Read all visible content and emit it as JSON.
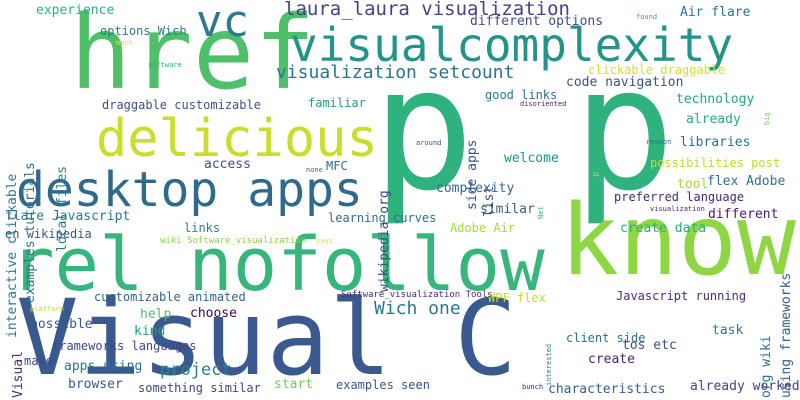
{
  "word_cloud": {
    "words": [
      {
        "text": "Visual C",
        "color": "#3a5a8f"
      },
      {
        "text": "p p",
        "color": "#2fb27d"
      },
      {
        "text": "know",
        "color": "#8fd644"
      },
      {
        "text": "rel nofollow",
        "color": "#36b67b"
      },
      {
        "text": "href",
        "color": "#4fbf6a"
      },
      {
        "text": "desktop apps",
        "color": "#2f6a8c"
      },
      {
        "text": "delicious",
        "color": "#c9dd2a"
      },
      {
        "text": "visualcomplexity",
        "color": "#23948c"
      },
      {
        "text": "vc",
        "color": "#2a7b8e"
      },
      {
        "text": "laura_laura visualization",
        "color": "#414487"
      },
      {
        "text": "visualization setcount",
        "color": "#2c738e"
      },
      {
        "text": "Wich one",
        "color": "#2a788e"
      },
      {
        "text": "project",
        "color": "#25848e"
      },
      {
        "text": "experience",
        "color": "#2db27d"
      },
      {
        "text": "options Wich",
        "color": "#2a7b8e"
      },
      {
        "text": "different options",
        "color": "#3e4c8a"
      },
      {
        "text": "Air flare",
        "color": "#2b758e"
      },
      {
        "text": "code navigation",
        "color": "#3b518b"
      },
      {
        "text": "clickable draggable",
        "color": "#d8e219"
      },
      {
        "text": "good links",
        "color": "#2c738e"
      },
      {
        "text": "technology",
        "color": "#22a884"
      },
      {
        "text": "already",
        "color": "#27ad81"
      },
      {
        "text": "libraries",
        "color": "#2e6f8e"
      },
      {
        "text": "possibilities post",
        "color": "#bddf26"
      },
      {
        "text": "draggable customizable",
        "color": "#3b528b"
      },
      {
        "text": "familiar",
        "color": "#22988d"
      },
      {
        "text": "welcome",
        "color": "#20928c"
      },
      {
        "text": "access",
        "color": "#3d4e8a"
      },
      {
        "text": "MFC",
        "color": "#2e6e8e"
      },
      {
        "text": "complexity",
        "color": "#2f6b8e"
      },
      {
        "text": "tool",
        "color": "#a2da37"
      },
      {
        "text": "flex Adobe",
        "color": "#2e6f8e"
      },
      {
        "text": "preferred language",
        "color": "#482777"
      },
      {
        "text": "similar",
        "color": "#35608d"
      },
      {
        "text": "different",
        "color": "#481a6c"
      },
      {
        "text": "flare Javascript",
        "color": "#2a788e"
      },
      {
        "text": "links",
        "color": "#24868e"
      },
      {
        "text": "learning curves",
        "color": "#2e6e8e"
      },
      {
        "text": "create data",
        "color": "#27ad81"
      },
      {
        "text": "en wikipedia",
        "color": "#3b528b"
      },
      {
        "text": "Adobe Air",
        "color": "#a5db36"
      },
      {
        "text": "customizable animated",
        "color": "#33638d"
      },
      {
        "text": "WPF flex",
        "color": "#c2df23"
      },
      {
        "text": "Javascript running",
        "color": "#472d7b"
      },
      {
        "text": "help",
        "color": "#4cc26c"
      },
      {
        "text": "choose",
        "color": "#440154"
      },
      {
        "text": "possible",
        "color": "#39568c"
      },
      {
        "text": "kind",
        "color": "#1fa187"
      },
      {
        "text": "client side",
        "color": "#2c728e"
      },
      {
        "text": "frameworks languages",
        "color": "#3f4788"
      },
      {
        "text": "make",
        "color": "#3e4a89"
      },
      {
        "text": "apps using",
        "color": "#2c718e"
      },
      {
        "text": "tos etc",
        "color": "#3d4d8a"
      },
      {
        "text": "create",
        "color": "#482071"
      },
      {
        "text": "browser",
        "color": "#38598c"
      },
      {
        "text": "something similar",
        "color": "#3f4889"
      },
      {
        "text": "start",
        "color": "#6ece58"
      },
      {
        "text": "examples seen",
        "color": "#3a548c"
      },
      {
        "text": "characteristics",
        "color": "#355f8d"
      },
      {
        "text": "already worked",
        "color": "#414487"
      },
      {
        "text": "task",
        "color": "#2a788e"
      },
      {
        "text": "Software_visualization Tools",
        "color": "#482878"
      },
      {
        "text": "wiki Software_visualization",
        "color": "#8bd646"
      },
      {
        "text": "interactive clickable",
        "color": "#2a788e"
      },
      {
        "text": "examples tutorials",
        "color": "#2c728e"
      },
      {
        "text": "local files",
        "color": "#2a7b8e"
      },
      {
        "text": "wikipedia org",
        "color": "#3f4788"
      },
      {
        "text": "side apps",
        "color": "#3b518b"
      },
      {
        "text": "list",
        "color": "#3b528b"
      },
      {
        "text": "Visual",
        "color": "#472c7a"
      },
      {
        "text": "using frameworks",
        "color": "#34618d"
      },
      {
        "text": "org wiki",
        "color": "#2c738e"
      },
      {
        "text": "Net",
        "color": "#2fb47c"
      },
      {
        "text": "p",
        "color": "#a8db34"
      },
      {
        "text": "found",
        "color": "#29af7f"
      },
      {
        "text": "much",
        "color": "#dde318"
      },
      {
        "text": "software",
        "color": "#25ac82"
      },
      {
        "text": "disoriented",
        "color": "#482173"
      },
      {
        "text": "big",
        "color": "#73d056"
      },
      {
        "text": "around",
        "color": "#3b518b"
      },
      {
        "text": "none",
        "color": "#2c728e"
      },
      {
        "text": "reason",
        "color": "#2e6f8e"
      },
      {
        "text": "visualization",
        "color": "#482677"
      },
      {
        "text": "says",
        "color": "#dde318"
      },
      {
        "text": "platform",
        "color": "#c0df25"
      },
      {
        "text": "interested",
        "color": "#25838e"
      },
      {
        "text": "bunch",
        "color": "#481467"
      }
    ]
  }
}
